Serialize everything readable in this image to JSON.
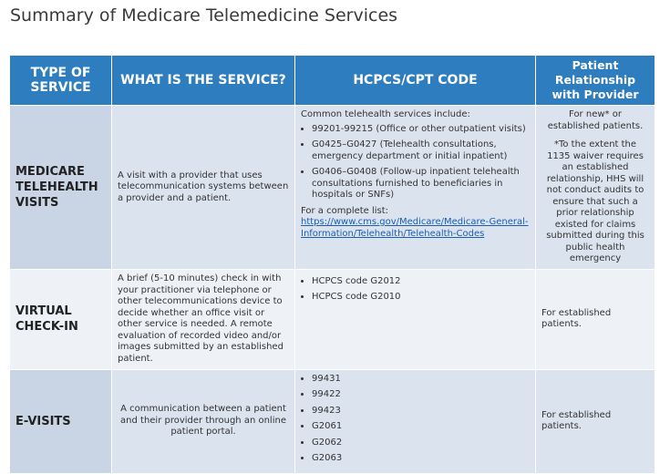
{
  "title": "Summary of Medicare Telemedicine Services",
  "table": {
    "header": [
      "TYPE OF SERVICE",
      "WHAT IS THE SERVICE?",
      "HCPCS/CPT CODE",
      "Patient Relationship with Provider"
    ],
    "rows": [
      {
        "type": "MEDICARE TELEHEALTH VISITS",
        "service": "A visit with a provider that uses telecommunication systems between a provider and a patient.",
        "codes": {
          "intro": "Common telehealth services include:",
          "items": [
            "99201-99215 (Office or other outpatient visits)",
            "G0425–G0427 (Telehealth consultations, emergency department or initial inpatient)",
            "G0406–G0408 (Follow-up inpatient telehealth consultations furnished to beneficiaries in hospitals or SNFs)"
          ],
          "list_label": "For a complete list:",
          "link": "https://www.cms.gov/Medicare/Medicare-General-Information/Telehealth/Telehealth-Codes"
        },
        "relationship": "For new* or established patients.",
        "note": "*To the extent the 1135 waiver requires an established relationship, HHS will not conduct audits to ensure that such a prior relationship existed for claims submitted during this public health emergency"
      },
      {
        "type": "VIRTUAL CHECK-IN",
        "service": "A brief (5-10 minutes) check in with your practitioner via telephone or other telecommunications device to decide whether an office visit or other service is needed. A remote evaluation of recorded video and/or images submitted by an established patient.",
        "codes": {
          "items": [
            "HCPCS code G2012",
            "HCPCS code G2010"
          ]
        },
        "relationship": "For established patients."
      },
      {
        "type": "E-VISITS",
        "service": "A communication between a patient and their provider through an online patient portal.",
        "codes": {
          "items": [
            "99431",
            "99422",
            "99423",
            "G2061",
            "G2062",
            "G2063"
          ]
        },
        "relationship": "For established patients."
      }
    ]
  }
}
